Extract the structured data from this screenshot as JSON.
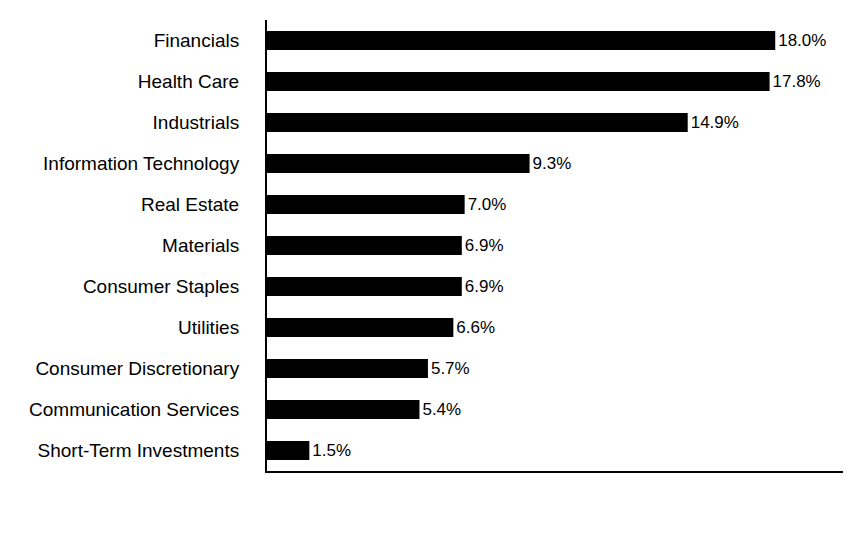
{
  "chart_data": {
    "type": "bar",
    "orientation": "horizontal",
    "categories": [
      "Financials",
      "Health Care",
      "Industrials",
      "Information Technology",
      "Real Estate",
      "Materials",
      "Consumer Staples",
      "Utilities",
      "Consumer Discretionary",
      "Communication Services",
      "Short-Term Investments"
    ],
    "values": [
      18.0,
      17.8,
      14.9,
      9.3,
      7.0,
      6.9,
      6.9,
      6.6,
      5.7,
      5.4,
      1.5
    ],
    "value_labels": [
      "18.0%",
      "17.8%",
      "14.9%",
      "9.3%",
      "7.0%",
      "6.9%",
      "6.9%",
      "6.6%",
      "5.7%",
      "5.4%",
      "1.5%"
    ],
    "color": "#000000",
    "xlim": [
      0,
      20.4
    ],
    "grid": false,
    "data_labels": true,
    "tick_labels": "y"
  }
}
